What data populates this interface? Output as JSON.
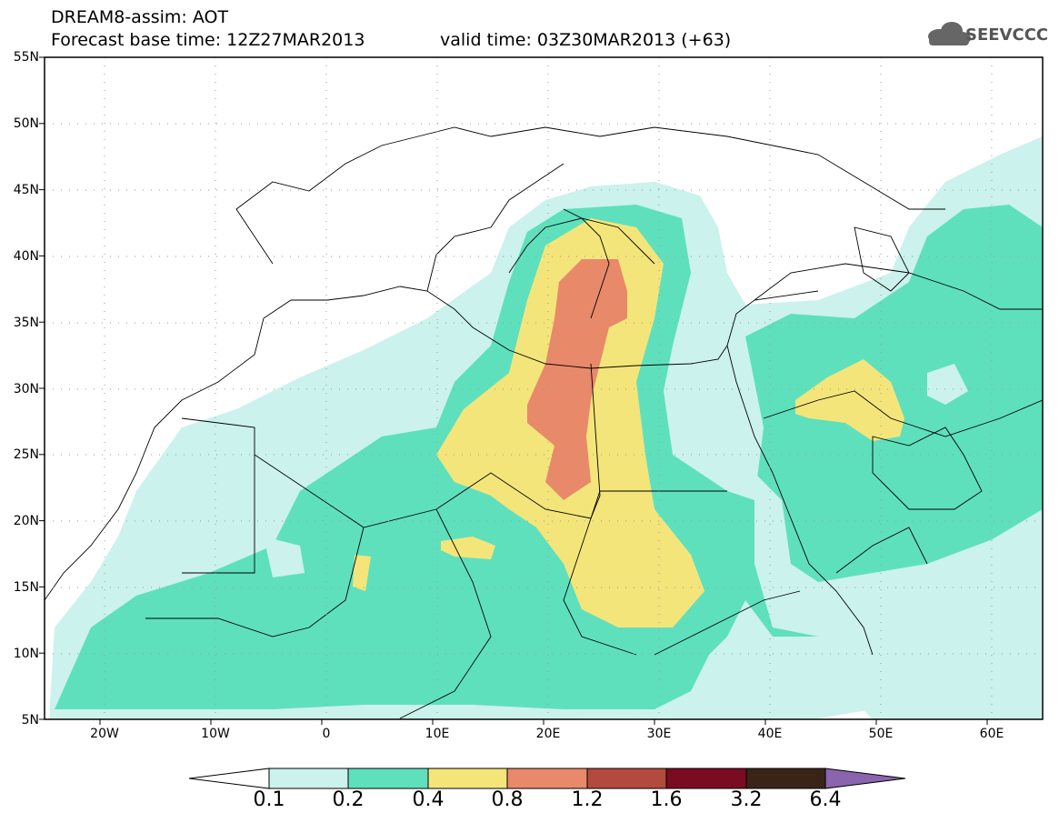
{
  "title": {
    "line1": "DREAM8-assim: AOT",
    "line2_left": "Forecast base time: 12Z27MAR2013",
    "line2_right": "valid time: 03Z30MAR2013 (+63)"
  },
  "logo": {
    "text": "SEEVCCC",
    "icon": "cloud-icon"
  },
  "axes": {
    "lat_labels": [
      "55N",
      "50N",
      "45N",
      "40N",
      "35N",
      "30N",
      "25N",
      "20N",
      "15N",
      "10N",
      "5N"
    ],
    "lon_labels": [
      "20W",
      "10W",
      "0",
      "10E",
      "20E",
      "30E",
      "40E",
      "50E",
      "60E"
    ],
    "lat_range": [
      5,
      55
    ],
    "lon_range": [
      -25,
      65
    ]
  },
  "colorbar": {
    "levels": [
      "0.1",
      "0.2",
      "0.4",
      "0.8",
      "1.2",
      "1.6",
      "3.2",
      "6.4"
    ],
    "colors": [
      "#cbf2ec",
      "#5fe0bd",
      "#f4e57a",
      "#e8896a",
      "#b24a3e",
      "#7a0c22",
      "#3a2418",
      "#8b64b0"
    ],
    "under_color": "#ffffff"
  },
  "field_colors": {
    "c01": "#cbf2ec",
    "c02": "#5fe0bd",
    "c04": "#f4e57a",
    "c08": "#e8896a"
  }
}
